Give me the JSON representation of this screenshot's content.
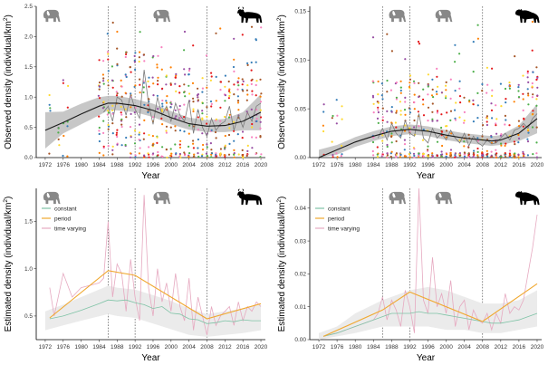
{
  "colors": {
    "ribbon": "#bdbdbd",
    "smooth": "#1a1a1a",
    "yearly": "#7a7a7a",
    "constant": "#7fc3a6",
    "period": "#f0a830",
    "time_varying": "#e6a9c0",
    "estimate_band": "#ebebeb",
    "vline": "#555555",
    "points": [
      "#e41a1c",
      "#4daf4a",
      "#984ea3",
      "#ff7f00",
      "#ffd92f",
      "#377eb8",
      "#a65628",
      "#f781bf"
    ]
  },
  "icons": [
    "elephant-icon",
    "elephant-icon",
    "wildebeest-icon",
    "hyena-icon"
  ],
  "chart_data": [
    {
      "type": "scatter",
      "panel": "top-left",
      "xlabel": "Year",
      "ylabel": "Observed density (individual/km²)",
      "ylabel_main": "Observed density (individual/km",
      "ylabel_sup": "2",
      "ylabel_close": ")",
      "xlim": [
        1970,
        2021
      ],
      "ylim": [
        0,
        2.5
      ],
      "x_ticks": [
        1972,
        1976,
        1980,
        1984,
        1988,
        1992,
        1996,
        2000,
        2004,
        2008,
        2012,
        2016,
        2020
      ],
      "y_ticks": [
        0.0,
        0.5,
        1.0,
        1.5,
        2.0,
        2.5
      ],
      "y_tick_labels": [
        "0.0",
        "0.5",
        "1.0",
        "1.5",
        "2.0",
        "2.5"
      ],
      "period_breaks": [
        1986,
        1992,
        2008
      ],
      "point_years": [
        1973,
        1975,
        1976,
        1977,
        1984,
        1985,
        1986,
        1987,
        1988,
        1989,
        1990,
        1991,
        1992,
        1993,
        1994,
        1995,
        1996,
        1997,
        1998,
        1999,
        2000,
        2001,
        2002,
        2003,
        2004,
        2005,
        2006,
        2007,
        2008,
        2009,
        2010,
        2011,
        2012,
        2013,
        2014,
        2015,
        2016,
        2017,
        2018,
        2019,
        2020
      ],
      "smooth": {
        "name": "smooth",
        "x": [
          1972,
          1976,
          1980,
          1984,
          1986,
          1988,
          1992,
          1996,
          2000,
          2004,
          2008,
          2012,
          2016,
          2020
        ],
        "y": [
          0.45,
          0.58,
          0.72,
          0.85,
          0.9,
          0.9,
          0.86,
          0.78,
          0.66,
          0.56,
          0.52,
          0.53,
          0.6,
          0.75
        ],
        "lower": [
          0.15,
          0.4,
          0.55,
          0.7,
          0.78,
          0.78,
          0.75,
          0.67,
          0.55,
          0.46,
          0.42,
          0.42,
          0.45,
          0.45
        ],
        "upper": [
          0.75,
          0.76,
          0.89,
          1.0,
          1.02,
          1.02,
          0.97,
          0.89,
          0.77,
          0.66,
          0.62,
          0.64,
          0.75,
          1.05
        ]
      },
      "yearly": {
        "name": "yearly mean",
        "x": [
          1985,
          1986,
          1987,
          1988,
          1989,
          1990,
          1991,
          1992,
          1993,
          1994,
          1995,
          1996,
          1997,
          1998,
          1999,
          2000,
          2001,
          2002,
          2003,
          2004,
          2005,
          2006,
          2007,
          2008,
          2009,
          2010,
          2011,
          2012,
          2013,
          2014,
          2015,
          2016,
          2017,
          2018,
          2019,
          2020
        ],
        "y": [
          0.75,
          0.85,
          0.6,
          1.0,
          0.95,
          0.7,
          1.05,
          0.8,
          0.65,
          1.45,
          0.9,
          0.55,
          1.0,
          0.7,
          0.85,
          0.6,
          0.9,
          0.7,
          0.6,
          0.95,
          0.4,
          0.8,
          0.5,
          0.35,
          0.65,
          0.45,
          0.55,
          0.6,
          0.85,
          0.45,
          0.7,
          0.5,
          0.75,
          0.6,
          0.85,
          0.9
        ]
      }
    },
    {
      "type": "scatter",
      "panel": "top-right",
      "xlabel": "Year",
      "ylabel": "Observed density (individual/km²)",
      "ylabel_main": "Observed density (individual/km",
      "ylabel_sup": "2",
      "ylabel_close": ")",
      "xlim": [
        1970,
        2021
      ],
      "ylim": [
        0,
        0.155
      ],
      "x_ticks": [
        1972,
        1976,
        1980,
        1984,
        1988,
        1992,
        1996,
        2000,
        2004,
        2008,
        2012,
        2016,
        2020
      ],
      "y_ticks": [
        0.0,
        0.05,
        0.1,
        0.15
      ],
      "y_tick_labels": [
        "0.00",
        "0.05",
        "0.10",
        "0.15"
      ],
      "period_breaks": [
        1986,
        1992,
        2008
      ],
      "point_years": [
        1973,
        1975,
        1976,
        1977,
        1984,
        1985,
        1986,
        1987,
        1988,
        1989,
        1990,
        1991,
        1992,
        1993,
        1994,
        1995,
        1996,
        1997,
        1998,
        1999,
        2000,
        2001,
        2002,
        2003,
        2004,
        2005,
        2006,
        2007,
        2008,
        2009,
        2010,
        2011,
        2012,
        2013,
        2014,
        2015,
        2016,
        2017,
        2018,
        2019,
        2020
      ],
      "smooth": {
        "name": "smooth",
        "x": [
          1972,
          1976,
          1980,
          1984,
          1988,
          1992,
          1996,
          2000,
          2004,
          2008,
          2010,
          2012,
          2016,
          2020
        ],
        "y": [
          0.0,
          0.008,
          0.016,
          0.022,
          0.027,
          0.029,
          0.027,
          0.023,
          0.02,
          0.018,
          0.017,
          0.018,
          0.025,
          0.04
        ],
        "lower": [
          0.0,
          0.003,
          0.011,
          0.017,
          0.022,
          0.024,
          0.022,
          0.018,
          0.015,
          0.013,
          0.012,
          0.013,
          0.017,
          0.025
        ],
        "upper": [
          0.008,
          0.013,
          0.021,
          0.027,
          0.032,
          0.034,
          0.032,
          0.028,
          0.025,
          0.023,
          0.022,
          0.023,
          0.033,
          0.055
        ]
      },
      "yearly": {
        "name": "yearly mean",
        "x": [
          1985,
          1986,
          1987,
          1988,
          1989,
          1990,
          1991,
          1992,
          1993,
          1994,
          1995,
          1996,
          1997,
          1998,
          1999,
          2000,
          2001,
          2002,
          2003,
          2004,
          2005,
          2006,
          2007,
          2008,
          2009,
          2010,
          2011,
          2012,
          2013,
          2014,
          2015,
          2016,
          2017,
          2018,
          2019,
          2020
        ],
        "y": [
          0.02,
          0.03,
          0.018,
          0.035,
          0.025,
          0.02,
          0.038,
          0.025,
          0.022,
          0.045,
          0.02,
          0.015,
          0.03,
          0.02,
          0.025,
          0.018,
          0.028,
          0.02,
          0.015,
          0.025,
          0.012,
          0.022,
          0.015,
          0.012,
          0.018,
          0.014,
          0.015,
          0.02,
          0.025,
          0.018,
          0.028,
          0.03,
          0.035,
          0.03,
          0.04,
          0.045
        ]
      }
    },
    {
      "type": "line",
      "panel": "bottom-left",
      "xlabel": "Year",
      "ylabel": "Estimated density (individual/km²)",
      "ylabel_main": "Estimated density (individual/km",
      "ylabel_sup": "2",
      "ylabel_close": ")",
      "xlim": [
        1970,
        2021
      ],
      "ylim": [
        0.25,
        1.85
      ],
      "x_ticks": [
        1972,
        1976,
        1980,
        1984,
        1988,
        1992,
        1996,
        2000,
        2004,
        2008,
        2012,
        2016,
        2020
      ],
      "y_ticks": [
        0.5,
        1.0,
        1.5
      ],
      "y_tick_labels": [
        "0.5",
        "1.0",
        "1.5"
      ],
      "period_breaks": [
        1986,
        1992,
        2008
      ],
      "legend": [
        "constant",
        "period",
        "time varying"
      ],
      "band": {
        "x": [
          1972,
          1976,
          1980,
          1986,
          1988,
          1992,
          1996,
          2000,
          2004,
          2008,
          2012,
          2016,
          2020
        ],
        "lower": [
          0.35,
          0.4,
          0.45,
          0.52,
          0.5,
          0.48,
          0.42,
          0.36,
          0.3,
          0.28,
          0.3,
          0.32,
          0.35
        ],
        "upper": [
          0.55,
          0.62,
          0.7,
          0.82,
          0.8,
          0.78,
          0.72,
          0.66,
          0.58,
          0.52,
          0.55,
          0.58,
          0.62
        ]
      },
      "series": [
        {
          "name": "constant",
          "x": [
            1973,
            1976,
            1980,
            1984,
            1986,
            1988,
            1990,
            1992,
            1994,
            1996,
            1998,
            2000,
            2002,
            2004,
            2006,
            2008,
            2010,
            2012,
            2014,
            2016,
            2018,
            2020
          ],
          "y": [
            0.47,
            0.5,
            0.56,
            0.63,
            0.67,
            0.66,
            0.67,
            0.64,
            0.62,
            0.58,
            0.6,
            0.53,
            0.52,
            0.47,
            0.46,
            0.42,
            0.43,
            0.45,
            0.44,
            0.46,
            0.45,
            0.45
          ]
        },
        {
          "name": "period",
          "x": [
            1973,
            1986,
            1992,
            2008,
            2020
          ],
          "y": [
            0.48,
            0.98,
            0.93,
            0.47,
            0.63
          ]
        },
        {
          "name": "time varying",
          "x": [
            1973,
            1974,
            1976,
            1978,
            1980,
            1984,
            1985,
            1986,
            1987,
            1988,
            1989,
            1990,
            1991,
            1992,
            1993,
            1994,
            1995,
            1996,
            1997,
            1998,
            1999,
            2000,
            2001,
            2002,
            2003,
            2004,
            2005,
            2006,
            2007,
            2008,
            2009,
            2010,
            2011,
            2012,
            2013,
            2014,
            2015,
            2016,
            2017,
            2018,
            2019,
            2020
          ],
          "y": [
            0.8,
            0.5,
            0.95,
            0.7,
            0.8,
            0.85,
            0.9,
            1.5,
            0.7,
            1.05,
            0.95,
            0.55,
            1.1,
            0.7,
            0.45,
            1.78,
            0.8,
            0.5,
            1.0,
            0.65,
            0.85,
            0.55,
            0.95,
            0.6,
            0.45,
            0.9,
            0.35,
            0.7,
            0.5,
            0.3,
            0.6,
            0.4,
            0.5,
            0.55,
            0.6,
            0.4,
            0.65,
            0.45,
            0.6,
            0.55,
            0.65,
            0.6
          ]
        }
      ]
    },
    {
      "type": "line",
      "panel": "bottom-right",
      "xlabel": "Year",
      "ylabel": "Estimated density (individual/km²)",
      "ylabel_main": "Estimated density (individual/km",
      "ylabel_sup": "2",
      "ylabel_close": ")",
      "xlim": [
        1970,
        2021
      ],
      "ylim": [
        0,
        0.046
      ],
      "x_ticks": [
        1972,
        1976,
        1980,
        1984,
        1988,
        1992,
        1996,
        2000,
        2004,
        2008,
        2012,
        2016,
        2020
      ],
      "y_ticks": [
        0.0,
        0.01,
        0.02,
        0.03,
        0.04
      ],
      "y_tick_labels": [
        "0.00",
        "0.01",
        "0.02",
        "0.03",
        "0.04"
      ],
      "period_breaks": [
        1986,
        1992,
        2008
      ],
      "legend": [
        "constant",
        "period",
        "time varying"
      ],
      "band": {
        "x": [
          1972,
          1976,
          1980,
          1986,
          1988,
          1992,
          1996,
          2000,
          2004,
          2008,
          2012,
          2016,
          2020
        ],
        "lower": [
          0.0,
          0.001,
          0.002,
          0.004,
          0.004,
          0.004,
          0.004,
          0.003,
          0.003,
          0.002,
          0.002,
          0.003,
          0.004
        ],
        "upper": [
          0.002,
          0.004,
          0.008,
          0.012,
          0.013,
          0.015,
          0.016,
          0.015,
          0.013,
          0.011,
          0.011,
          0.012,
          0.015
        ]
      },
      "series": [
        {
          "name": "constant",
          "x": [
            1973,
            1976,
            1980,
            1984,
            1986,
            1988,
            1990,
            1992,
            1994,
            1996,
            1998,
            2000,
            2002,
            2004,
            2006,
            2008,
            2010,
            2012,
            2014,
            2016,
            2018,
            2020
          ],
          "y": [
            0.001,
            0.002,
            0.004,
            0.006,
            0.007,
            0.008,
            0.008,
            0.008,
            0.0085,
            0.008,
            0.008,
            0.0075,
            0.007,
            0.0065,
            0.006,
            0.0055,
            0.005,
            0.005,
            0.0055,
            0.006,
            0.007,
            0.008
          ]
        },
        {
          "name": "period",
          "x": [
            1973,
            1986,
            1992,
            2008,
            2020
          ],
          "y": [
            0.001,
            0.009,
            0.0145,
            0.0055,
            0.017
          ]
        },
        {
          "name": "time varying",
          "x": [
            1973,
            1976,
            1980,
            1984,
            1985,
            1986,
            1987,
            1988,
            1989,
            1990,
            1991,
            1992,
            1993,
            1994,
            1995,
            1996,
            1997,
            1998,
            1999,
            2000,
            2001,
            2002,
            2003,
            2004,
            2005,
            2006,
            2007,
            2008,
            2009,
            2010,
            2011,
            2012,
            2013,
            2014,
            2015,
            2016,
            2017,
            2018,
            2019,
            2020
          ],
          "y": [
            0.001,
            0.002,
            0.004,
            0.006,
            0.008,
            0.013,
            0.006,
            0.012,
            0.009,
            0.004,
            0.015,
            0.01,
            0.002,
            0.046,
            0.012,
            0.008,
            0.025,
            0.01,
            0.014,
            0.008,
            0.018,
            0.004,
            0.01,
            0.012,
            0.003,
            0.009,
            0.006,
            0.005,
            0.008,
            0.003,
            0.008,
            0.005,
            0.014,
            0.008,
            0.01,
            0.009,
            0.012,
            0.02,
            0.028,
            0.038
          ]
        }
      ]
    }
  ]
}
